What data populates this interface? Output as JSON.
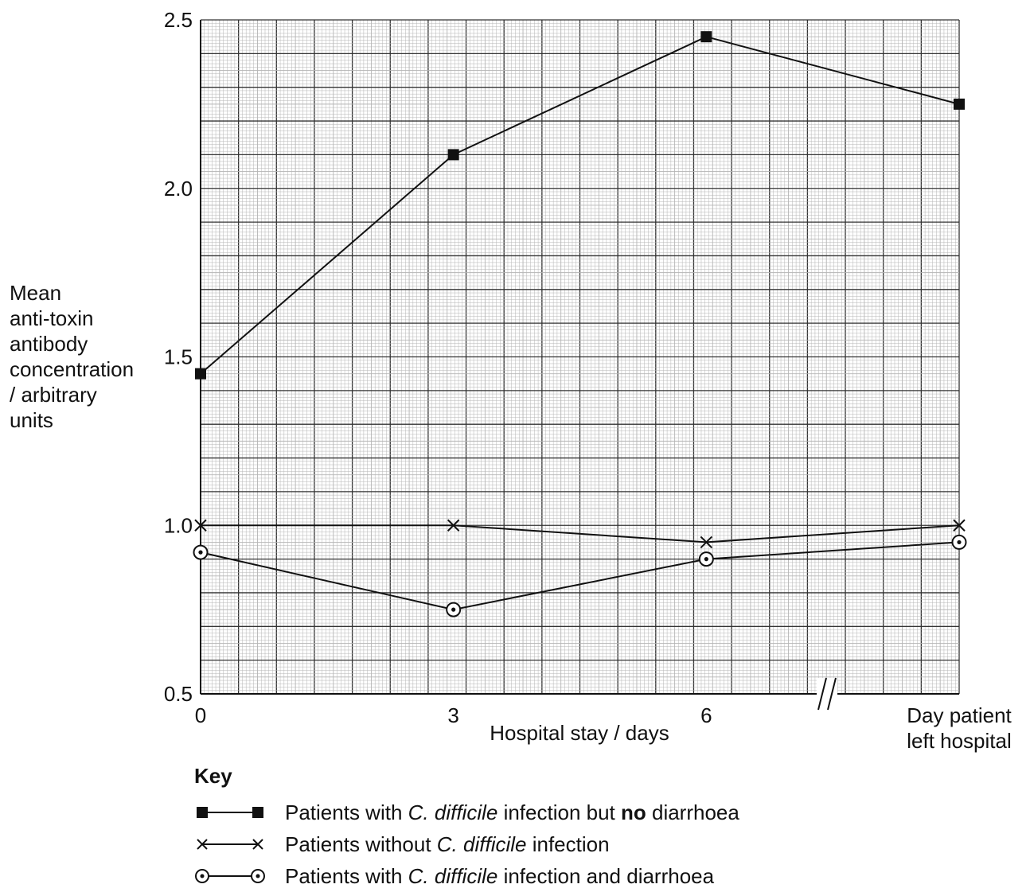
{
  "chart_data": {
    "type": "line",
    "x_positions": [
      0,
      3,
      6,
      9
    ],
    "x_tick_labels": [
      "0",
      "3",
      "6"
    ],
    "x_end_label_lines": [
      "Day patient",
      "left hospital"
    ],
    "xlabel": "Hospital stay / days",
    "ylabel_lines": [
      "Mean",
      "anti-toxin",
      "antibody",
      "concentration",
      "/ arbitrary",
      "units"
    ],
    "ylim": [
      0.5,
      2.5
    ],
    "y_ticks": [
      "0.5",
      "1.0",
      "1.5",
      "2.0",
      "2.5"
    ],
    "grid": true,
    "axis_break": "between 6 and Day patient left hospital",
    "series": [
      {
        "marker": "square",
        "values": [
          1.45,
          2.1,
          2.45,
          2.25
        ]
      },
      {
        "marker": "cross",
        "values": [
          1.0,
          1.0,
          0.95,
          1.0
        ]
      },
      {
        "marker": "dotted-circle",
        "values": [
          0.92,
          0.75,
          0.9,
          0.95
        ]
      }
    ]
  },
  "key": {
    "title": "Key",
    "entries": [
      {
        "marker": "square",
        "parts": [
          "Patients with ",
          "C. difficile",
          " infection but ",
          "no",
          " diarrhoea"
        ]
      },
      {
        "marker": "cross",
        "parts": [
          "Patients without ",
          "C. difficile",
          " infection"
        ]
      },
      {
        "marker": "dotted-circle",
        "parts": [
          "Patients with ",
          "C. difficile",
          " infection and diarrhoea"
        ]
      }
    ]
  },
  "colors": {
    "line": "#111111",
    "grid_minor": "#b5b5b5",
    "grid_major": "#333333"
  }
}
